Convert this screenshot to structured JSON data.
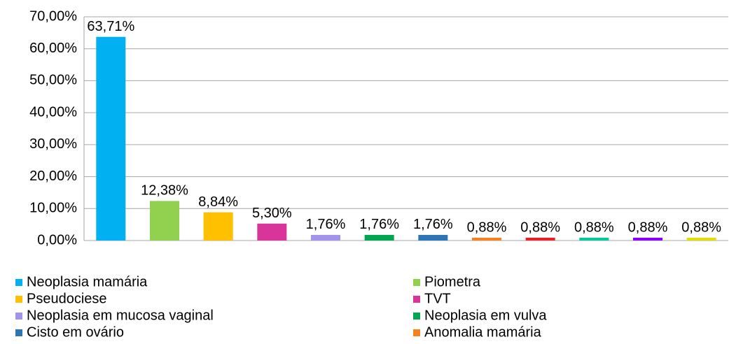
{
  "chart_data": {
    "type": "bar",
    "categories": [
      "Neoplasia mamária",
      "Piometra",
      "Pseudociese",
      "TVT",
      "Neoplasia em mucosa vaginal",
      "Neoplasia em vulva",
      "Cisto em ovário",
      "Anomalia mamária",
      null,
      null,
      null,
      null
    ],
    "colors": [
      "#00b0f0",
      "#92d050",
      "#ffc000",
      "#d9349a",
      "#a393ea",
      "#00a651",
      "#2e75b6",
      "#f5821f",
      "#ee1c25",
      "#00c99a",
      "#8b00ff",
      "#e0e000"
    ],
    "values": [
      63.71,
      12.38,
      8.84,
      5.3,
      1.76,
      1.76,
      1.76,
      0.88,
      0.88,
      0.88,
      0.88,
      0.88
    ],
    "value_labels": [
      "63,71%",
      "12,38%",
      "8,84%",
      "5,30%",
      "1,76%",
      "1,76%",
      "1,76%",
      "0,88%",
      "0,88%",
      "0,88%",
      "0,88%",
      "0,88%"
    ],
    "ylim": [
      0,
      70
    ],
    "yticks": [
      {
        "value": 0,
        "label": "0,00%"
      },
      {
        "value": 10,
        "label": "10,00%"
      },
      {
        "value": 20,
        "label": "20,00%"
      },
      {
        "value": 30,
        "label": "30,00%"
      },
      {
        "value": 40,
        "label": "40,00%"
      },
      {
        "value": 50,
        "label": "50,00%"
      },
      {
        "value": 60,
        "label": "60,00%"
      },
      {
        "value": 70,
        "label": "70,00%"
      }
    ],
    "grid": true
  }
}
